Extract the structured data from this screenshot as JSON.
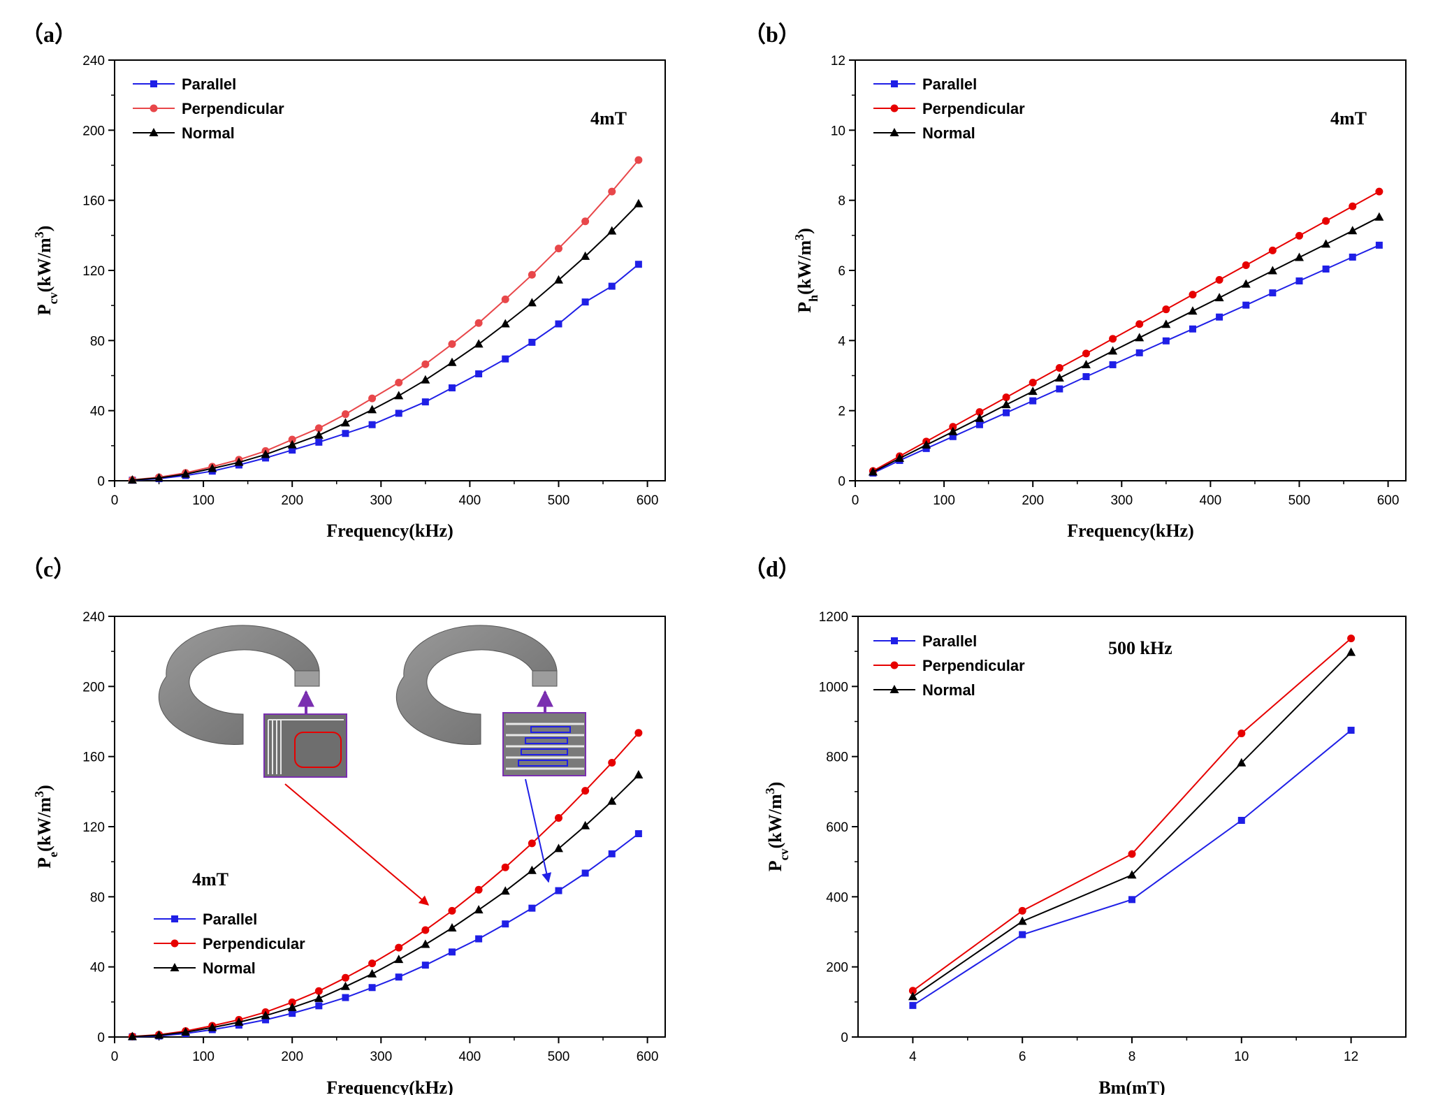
{
  "chart_data": [
    {
      "id": "a",
      "type": "line",
      "panel_label": "（a）",
      "xlabel": "Frequency(kHz)",
      "ylabel_main": "P",
      "ylabel_sub": "cv",
      "ylabel_rest": "(kW/m",
      "ylabel_sup": "3",
      "ylabel_close": ")",
      "xlim": [
        0,
        620
      ],
      "ylim": [
        0,
        240
      ],
      "xticks": [
        0,
        100,
        200,
        300,
        400,
        500,
        600
      ],
      "yticks": [
        0,
        40,
        80,
        120,
        160,
        200,
        240
      ],
      "annotation": "4mT",
      "legend_position": "top-left",
      "x": [
        20,
        50,
        80,
        110,
        140,
        170,
        200,
        230,
        260,
        290,
        320,
        350,
        380,
        410,
        440,
        470,
        500,
        530,
        560,
        590
      ],
      "series": [
        {
          "name": "Parallel",
          "color": "#1f1fe6",
          "marker": "square",
          "values": [
            0.3,
            1.2,
            3.0,
            5.5,
            9.0,
            13.0,
            17.5,
            22.0,
            27.0,
            32.0,
            38.5,
            45.0,
            53.0,
            61.0,
            69.5,
            79.0,
            89.5,
            102.0,
            111.0,
            123.5
          ]
        },
        {
          "name": "Perpendicular",
          "color": "#e8474a",
          "marker": "circle",
          "values": [
            0.5,
            2.0,
            4.5,
            8.0,
            12.0,
            17.0,
            23.5,
            30.0,
            38.0,
            47.0,
            56.0,
            66.5,
            78.0,
            90.0,
            103.5,
            117.5,
            132.5,
            148.0,
            165.0,
            183.0
          ]
        },
        {
          "name": "Normal",
          "color": "#000000",
          "marker": "triangle",
          "values": [
            0.4,
            1.6,
            3.8,
            7.0,
            10.5,
            15.0,
            20.5,
            26.0,
            33.0,
            40.5,
            48.5,
            57.5,
            67.5,
            78.0,
            89.5,
            101.5,
            114.5,
            128.0,
            142.5,
            158.0
          ]
        }
      ]
    },
    {
      "id": "b",
      "type": "line",
      "panel_label": "（b）",
      "xlabel": "Frequency(kHz)",
      "ylabel_main": "P",
      "ylabel_sub": "h",
      "ylabel_rest": "(kW/m",
      "ylabel_sup": "3",
      "ylabel_close": ")",
      "xlim": [
        0,
        620
      ],
      "ylim": [
        0,
        12
      ],
      "xticks": [
        0,
        100,
        200,
        300,
        400,
        500,
        600
      ],
      "yticks": [
        0,
        2,
        4,
        6,
        8,
        10,
        12
      ],
      "annotation": "4mT",
      "legend_position": "top-left",
      "x": [
        20,
        50,
        80,
        110,
        140,
        170,
        200,
        230,
        260,
        290,
        320,
        350,
        380,
        410,
        440,
        470,
        500,
        530,
        560,
        590
      ],
      "series": [
        {
          "name": "Parallel",
          "color": "#1f1fe6",
          "marker": "square",
          "values": [
            0.22,
            0.58,
            0.92,
            1.26,
            1.6,
            1.94,
            2.28,
            2.62,
            2.97,
            3.31,
            3.65,
            3.99,
            4.33,
            4.67,
            5.01,
            5.36,
            5.7,
            6.04,
            6.38,
            6.72
          ]
        },
        {
          "name": "Perpendicular",
          "color": "#e60000",
          "marker": "circle",
          "values": [
            0.28,
            0.7,
            1.12,
            1.54,
            1.96,
            2.38,
            2.8,
            3.22,
            3.63,
            4.05,
            4.47,
            4.89,
            5.31,
            5.73,
            6.15,
            6.57,
            6.99,
            7.41,
            7.83,
            8.25
          ]
        },
        {
          "name": "Normal",
          "color": "#000000",
          "marker": "triangle",
          "values": [
            0.25,
            0.64,
            1.02,
            1.4,
            1.78,
            2.17,
            2.55,
            2.93,
            3.31,
            3.7,
            4.08,
            4.46,
            4.84,
            5.22,
            5.61,
            5.99,
            6.37,
            6.75,
            7.13,
            7.52
          ]
        }
      ]
    },
    {
      "id": "c",
      "type": "line",
      "panel_label": "（c）",
      "xlabel": "Frequency(kHz)",
      "ylabel_main": "P",
      "ylabel_sub": "e",
      "ylabel_rest": "(kW/m",
      "ylabel_sup": "3",
      "ylabel_close": ")",
      "xlim": [
        0,
        620
      ],
      "ylim": [
        0,
        240
      ],
      "xticks": [
        0,
        100,
        200,
        300,
        400,
        500,
        600
      ],
      "yticks": [
        0,
        40,
        80,
        120,
        160,
        200,
        240
      ],
      "annotation": "4mT",
      "legend_position": "bottom-left",
      "x": [
        20,
        50,
        80,
        110,
        140,
        170,
        200,
        230,
        260,
        290,
        320,
        350,
        380,
        410,
        440,
        470,
        500,
        530,
        560,
        590
      ],
      "series": [
        {
          "name": "Parallel",
          "color": "#1f1fe6",
          "marker": "square",
          "values": [
            0.1,
            0.6,
            2.0,
            4.2,
            6.8,
            9.8,
            13.5,
            17.8,
            22.5,
            28.2,
            34.2,
            41.0,
            48.5,
            56.0,
            64.5,
            73.5,
            83.5,
            93.5,
            104.5,
            116.0
          ]
        },
        {
          "name": "Perpendicular",
          "color": "#e60000",
          "marker": "circle",
          "values": [
            0.3,
            1.3,
            3.4,
            6.4,
            9.8,
            14.2,
            19.8,
            26.2,
            33.8,
            42.0,
            51.0,
            61.0,
            72.0,
            84.0,
            96.8,
            110.5,
            125.0,
            140.5,
            156.5,
            173.5
          ]
        },
        {
          "name": "Normal",
          "color": "#000000",
          "marker": "triangle",
          "values": [
            0.2,
            1.0,
            2.8,
            5.4,
            8.4,
            12.2,
            16.8,
            22.0,
            28.8,
            36.0,
            44.2,
            52.8,
            62.2,
            72.5,
            83.2,
            95.0,
            107.5,
            120.5,
            134.5,
            149.5
          ]
        }
      ]
    },
    {
      "id": "d",
      "type": "line",
      "panel_label": "（d）",
      "xlabel": "Bm(mT)",
      "ylabel_main": "P",
      "ylabel_sub": "cv",
      "ylabel_rest": "(kW/m",
      "ylabel_sup": "3",
      "ylabel_close": ")",
      "xlim": [
        3,
        13
      ],
      "ylim": [
        0,
        1200
      ],
      "xticks": [
        4,
        6,
        8,
        10,
        12
      ],
      "yticks": [
        0,
        200,
        400,
        600,
        800,
        1000,
        1200
      ],
      "annotation": "500 kHz",
      "legend_position": "top-left",
      "x": [
        4,
        6,
        8,
        10,
        12
      ],
      "series": [
        {
          "name": "Parallel",
          "color": "#1f1fe6",
          "marker": "square",
          "values": [
            90,
            292,
            392,
            618,
            875
          ]
        },
        {
          "name": "Perpendicular",
          "color": "#e60000",
          "marker": "circle",
          "values": [
            132,
            360,
            522,
            866,
            1137
          ]
        },
        {
          "name": "Normal",
          "color": "#000000",
          "marker": "triangle",
          "values": [
            115,
            330,
            462,
            782,
            1097
          ]
        }
      ]
    }
  ]
}
